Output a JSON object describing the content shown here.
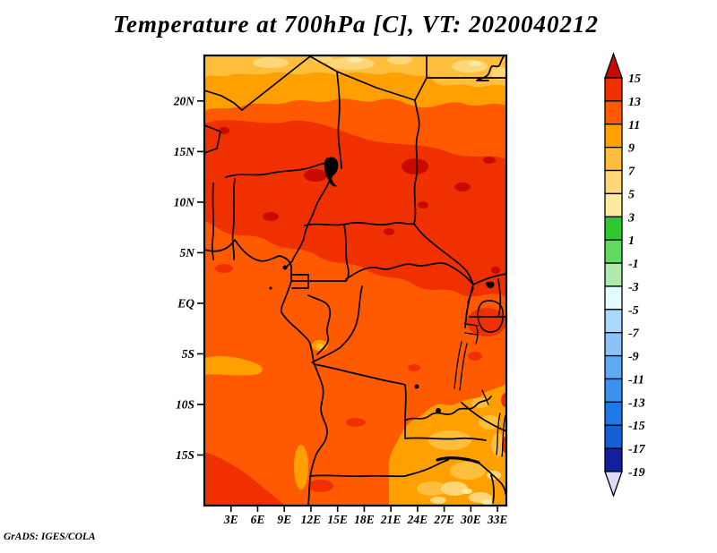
{
  "title": "Temperature at 700hPa [C], VT: 2020040212",
  "credit": "GrADS: IGES/COLA",
  "axes": {
    "lat_ticks": [
      {
        "value": 20,
        "label": "20N"
      },
      {
        "value": 15,
        "label": "15N"
      },
      {
        "value": 10,
        "label": "10N"
      },
      {
        "value": 5,
        "label": "5N"
      },
      {
        "value": 0,
        "label": "EQ"
      },
      {
        "value": -5,
        "label": "5S"
      },
      {
        "value": -10,
        "label": "10S"
      },
      {
        "value": -15,
        "label": "15S"
      }
    ],
    "lon_ticks": [
      {
        "value": 3,
        "label": "3E"
      },
      {
        "value": 6,
        "label": "6E"
      },
      {
        "value": 9,
        "label": "9E"
      },
      {
        "value": 12,
        "label": "12E"
      },
      {
        "value": 15,
        "label": "15E"
      },
      {
        "value": 18,
        "label": "18E"
      },
      {
        "value": 21,
        "label": "21E"
      },
      {
        "value": 24,
        "label": "24E"
      },
      {
        "value": 27,
        "label": "27E"
      },
      {
        "value": 30,
        "label": "30E"
      },
      {
        "value": 33,
        "label": "33E"
      }
    ]
  },
  "palette": {
    "over": "#c80a00",
    "t13_15": "#f13000",
    "t11_13": "#ff5a00",
    "t9_11": "#ffa000",
    "t7_9": "#ffbe3c",
    "t5_7": "#ffd778",
    "t3_5": "#faeba0",
    "t1_3": "#2fc82f",
    "tm1_1": "#62da62",
    "tm3_m1": "#aee9ae",
    "tm5_m3": "#e2fcff",
    "tm7_m5": "#aad7fa",
    "tm9_m7": "#8cc3f7",
    "tm11_m9": "#5fa8f2",
    "tm13_m11": "#3c93ee",
    "tm15_m13": "#1f78e8",
    "tm17_m15": "#155fd4",
    "tm19_m17": "#131f9b",
    "under": "#dcdcf8"
  },
  "colorbar": {
    "tick_labels": [
      "15",
      "13",
      "11",
      "9",
      "7",
      "5",
      "3",
      "1",
      "-1",
      "-3",
      "-5",
      "-7",
      "-9",
      "-11",
      "-13",
      "-15",
      "-17",
      "-19"
    ],
    "colors_top_to_bottom": [
      "#c80a00",
      "#f13000",
      "#ff5a00",
      "#ffa000",
      "#ffbe3c",
      "#ffd778",
      "#faeba0",
      "#2fc82f",
      "#62da62",
      "#aee9ae",
      "#e2fcff",
      "#aad7fa",
      "#8cc3f7",
      "#5fa8f2",
      "#3c93ee",
      "#1f78e8",
      "#155fd4",
      "#131f9b",
      "#dcdcf8"
    ]
  },
  "chart_data": {
    "type": "heatmap",
    "title": "Temperature at 700hPa [C], VT: 2020040212",
    "variable": "Temperature",
    "level": "700hPa",
    "units": "C",
    "valid_time": "2020040212",
    "renderer": "GrADS: IGES/COLA",
    "lon_ticks_deg_east": [
      3,
      6,
      9,
      12,
      15,
      18,
      21,
      24,
      27,
      30,
      33
    ],
    "lat_ticks_deg": [
      20,
      15,
      10,
      5,
      0,
      -5,
      -10,
      -15
    ],
    "lon_range_deg_east": [
      0,
      34
    ],
    "lat_range_deg": [
      -20,
      24.5
    ],
    "contour_levels_c": [
      -19,
      -17,
      -15,
      -13,
      -11,
      -9,
      -7,
      -5,
      -3,
      -1,
      1,
      3,
      5,
      7,
      9,
      11,
      13,
      15
    ],
    "legend_position": "right",
    "grid": false,
    "regions_approx_values": [
      {
        "area": "far north band 21N-24N",
        "value_c": "7 to 11, patches 3 to 7 at top edge"
      },
      {
        "area": "northeast corner (Egypt area)",
        "value_c": "5 to 9"
      },
      {
        "area": "Sahel belt 8N-18N",
        "value_c": "13 to 15 with local spots above 15"
      },
      {
        "area": "central equatorial belt 8N-10S",
        "value_c": "11 to 13"
      },
      {
        "area": "small Gabon patch near 12E 1S",
        "value_c": "9 to 11"
      },
      {
        "area": "Lake Victoria vicinity 32E 2S",
        "value_c": "13 to 15"
      },
      {
        "area": "southeast (Zambia/SW Tanzania)",
        "value_c": "7 to 11, pale 3 to 7 at corner"
      },
      {
        "area": "coastal patch near 1E 5S",
        "value_c": "9 to 11"
      },
      {
        "area": "southwest Atlantic corner below 15S",
        "value_c": "13 to 15"
      }
    ]
  }
}
